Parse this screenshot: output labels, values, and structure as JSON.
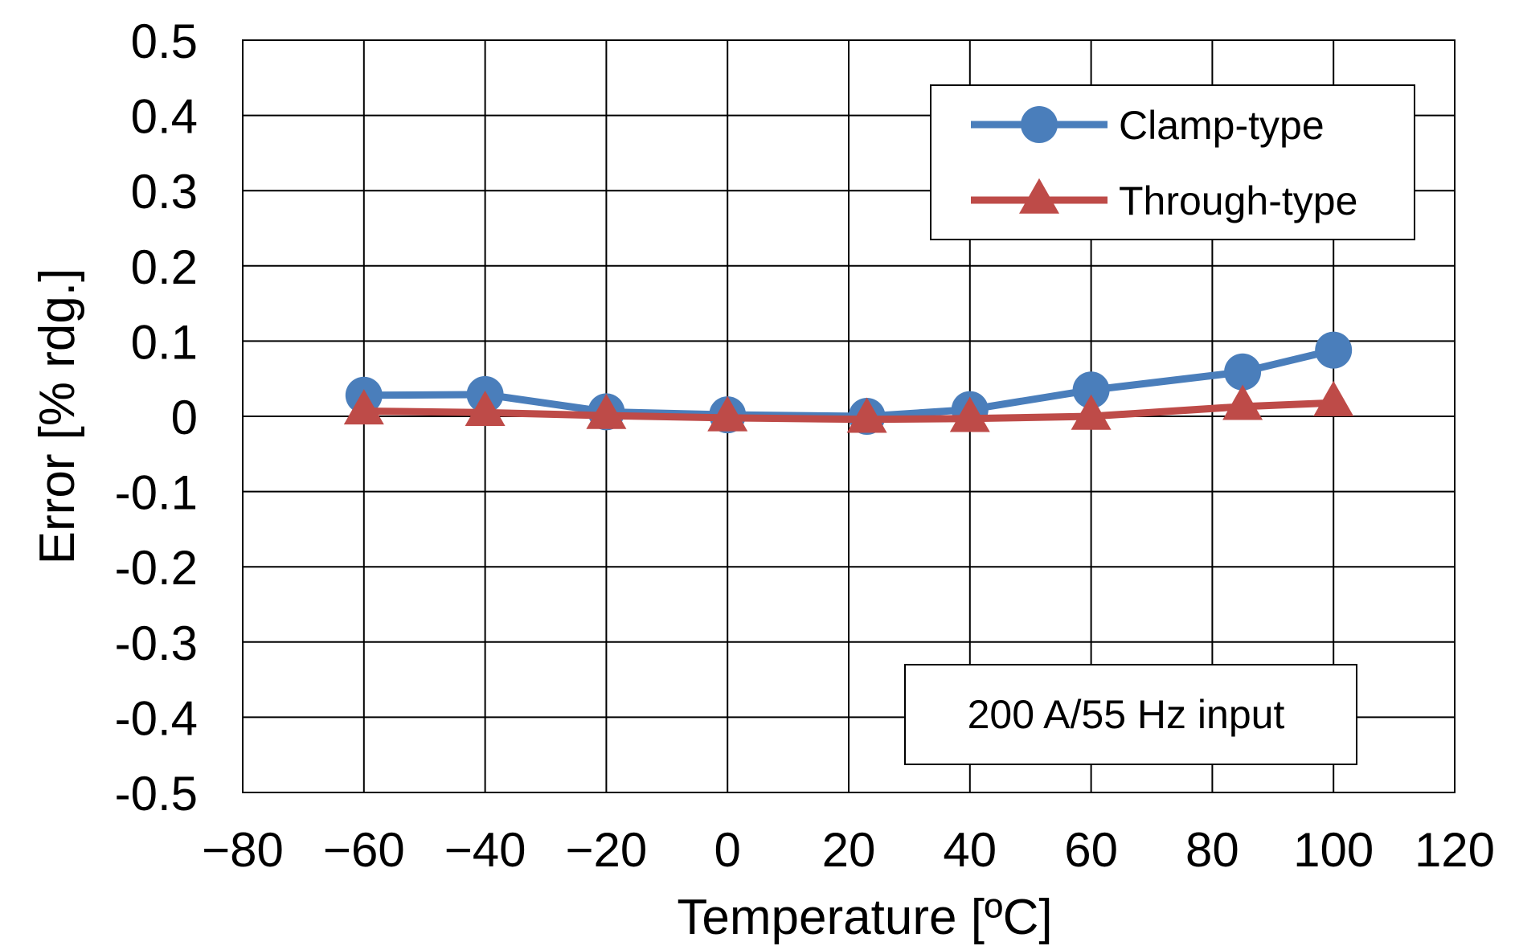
{
  "chart_data": {
    "type": "line",
    "xlabel": "Temperature [ºC]",
    "ylabel": "Error [% rdg.]",
    "xlim": [
      -80,
      120
    ],
    "ylim": [
      -0.5,
      0.5
    ],
    "x_ticks": [
      -80,
      -60,
      -40,
      -20,
      0,
      20,
      40,
      60,
      80,
      100,
      120
    ],
    "x_tick_labels": [
      "−80",
      "−60",
      "−40",
      "−20",
      "0",
      "20",
      "40",
      "60",
      "80",
      "100",
      "120"
    ],
    "y_ticks": [
      0.5,
      0.4,
      0.3,
      0.2,
      0.1,
      0,
      -0.1,
      -0.2,
      -0.3,
      -0.4,
      -0.5
    ],
    "y_tick_labels": [
      "0.5",
      "0.4",
      "0.3",
      "0.2",
      "0.1",
      "0",
      "-0.1",
      "-0.2",
      "-0.3",
      "-0.4",
      "-0.5"
    ],
    "grid": true,
    "legend_position": "top-right",
    "annotation": "200 A/55 Hz input",
    "series": [
      {
        "name": "Clamp-type",
        "color": "#4a7ebb",
        "marker": "circle",
        "x": [
          -60,
          -40,
          -20,
          0,
          23,
          40,
          60,
          85,
          100
        ],
        "y": [
          0.028,
          0.029,
          0.006,
          0.002,
          0.0,
          0.009,
          0.035,
          0.059,
          0.088
        ]
      },
      {
        "name": "Through-type",
        "color": "#be4b48",
        "marker": "triangle",
        "x": [
          -60,
          -40,
          -20,
          0,
          23,
          40,
          60,
          85,
          100
        ],
        "y": [
          0.007,
          0.005,
          0.001,
          -0.002,
          -0.004,
          -0.003,
          0.0,
          0.013,
          0.018
        ]
      }
    ]
  }
}
